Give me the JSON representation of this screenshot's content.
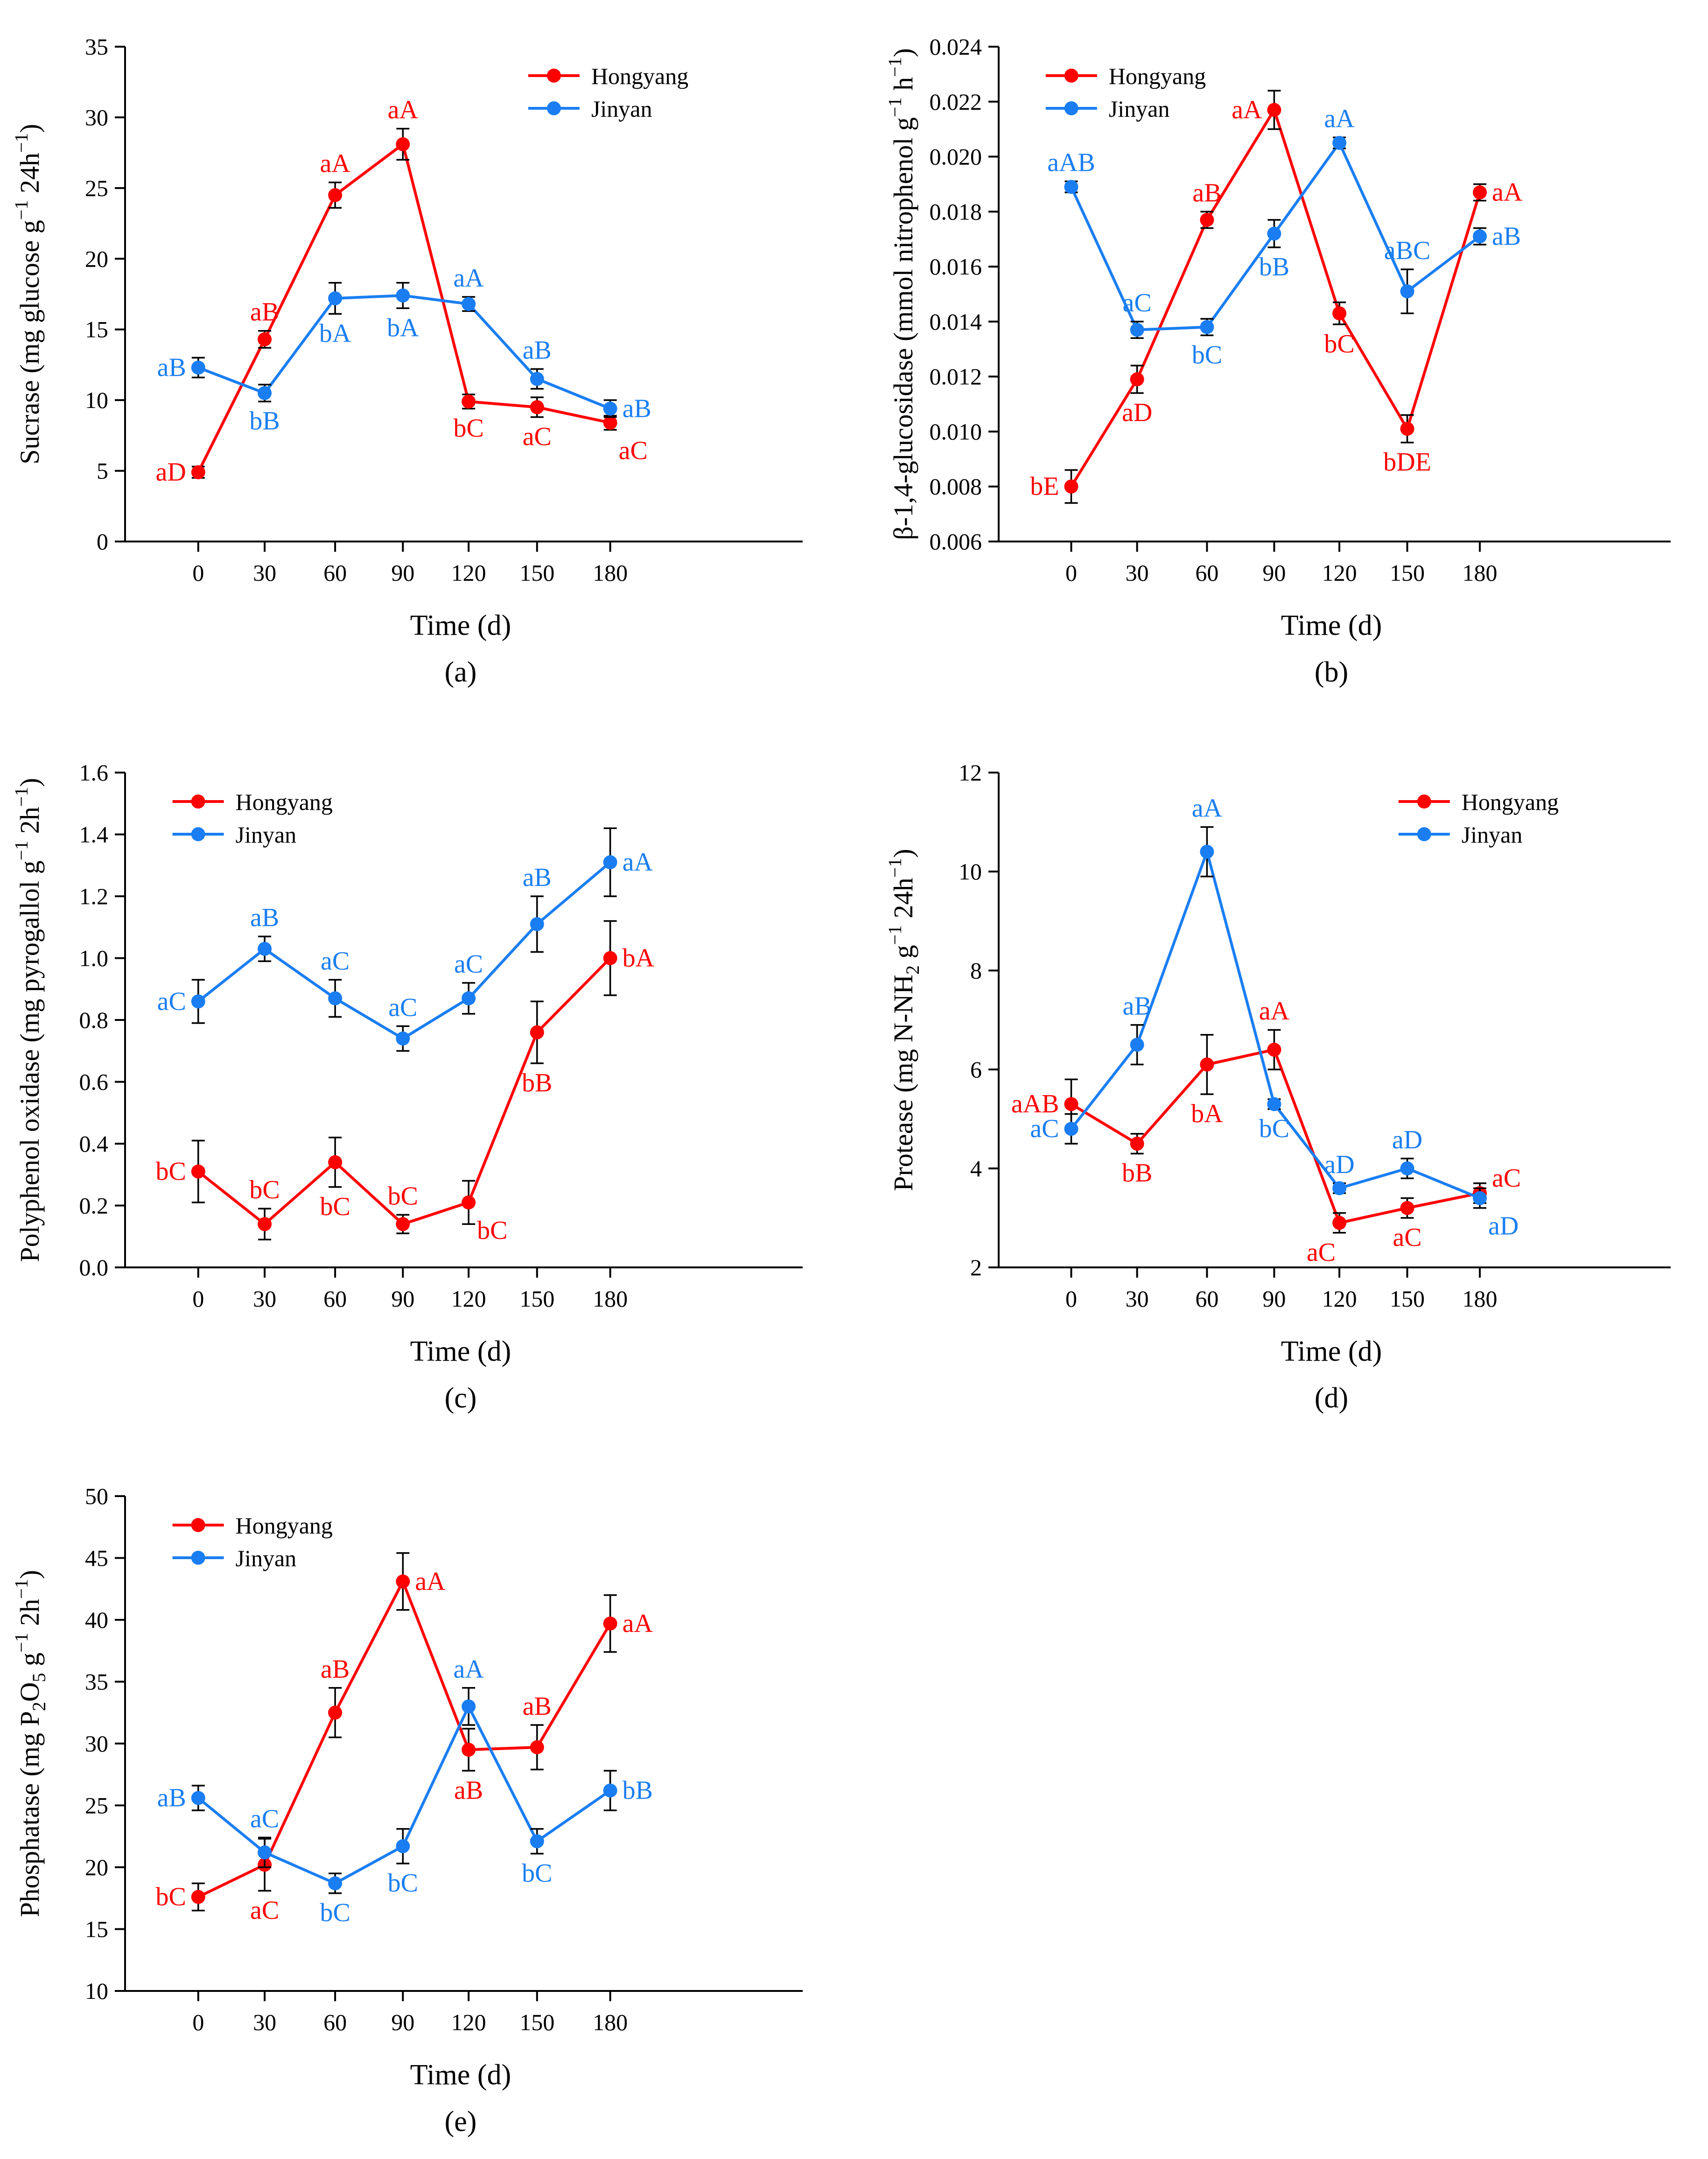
{
  "colors": {
    "hongyang": "#ff0000",
    "jinyan": "#1a7ef2",
    "axis": "#000000",
    "error_bar": "#000000"
  },
  "chart_data": [
    {
      "type": "line",
      "panel_label": "(a)",
      "xlabel": "Time (d)",
      "ylabel_main": "Sucrase (mg glucose g",
      "ylabel_tail": "24h",
      "ylim": [
        0,
        35
      ],
      "yticks": [
        "0",
        "5",
        "10",
        "15",
        "20",
        "25",
        "30",
        "35"
      ],
      "ytick_values": [
        0,
        5,
        10,
        15,
        20,
        25,
        30,
        35
      ],
      "categories": [
        "0",
        "30",
        "60",
        "90",
        "120",
        "150",
        "180"
      ],
      "legend_position": "top-right",
      "series": [
        {
          "name": "Hongyang",
          "color_key": "hongyang",
          "values": [
            4.9,
            14.3,
            24.5,
            28.1,
            9.9,
            9.5,
            8.4
          ],
          "errors": [
            0.4,
            0.6,
            0.9,
            1.1,
            0.5,
            0.7,
            0.5
          ],
          "labels": [
            "aD",
            "aB",
            "aA",
            "aA",
            "bC",
            "aC",
            "aC"
          ],
          "label_pos": [
            "left",
            "above",
            "above",
            "above",
            "below",
            "below",
            "below-right"
          ]
        },
        {
          "name": "Jinyan",
          "color_key": "jinyan",
          "values": [
            12.3,
            10.5,
            17.2,
            17.4,
            16.8,
            11.5,
            9.4
          ],
          "errors": [
            0.7,
            0.6,
            1.1,
            0.9,
            0.5,
            0.7,
            0.6
          ],
          "labels": [
            "aB",
            "bB",
            "bA",
            "bA",
            "aA",
            "aB",
            "aB"
          ],
          "label_pos": [
            "left",
            "below",
            "below",
            "below",
            "above",
            "above",
            "right"
          ]
        }
      ]
    },
    {
      "type": "line",
      "panel_label": "(b)",
      "xlabel": "Time (d)",
      "ylabel_main": "β-1,4-glucosidase (mmol nitrophenol g",
      "ylabel_tail": "h",
      "ylim": [
        0.006,
        0.024
      ],
      "yticks": [
        "0.006",
        "0.008",
        "0.010",
        "0.012",
        "0.014",
        "0.016",
        "0.018",
        "0.020",
        "0.022",
        "0.024"
      ],
      "ytick_values": [
        0.006,
        0.008,
        0.01,
        0.012,
        0.014,
        0.016,
        0.018,
        0.02,
        0.022,
        0.024
      ],
      "categories": [
        "0",
        "30",
        "60",
        "90",
        "120",
        "150",
        "180"
      ],
      "legend_position": "top-left",
      "series": [
        {
          "name": "Hongyang",
          "color_key": "hongyang",
          "values": [
            0.008,
            0.0119,
            0.0177,
            0.0217,
            0.0143,
            0.0101,
            0.0187
          ],
          "errors": [
            0.0006,
            0.0005,
            0.0003,
            0.0007,
            0.0004,
            0.0005,
            0.0003
          ],
          "labels": [
            "bE",
            "aD",
            "aB",
            "aA",
            "bC",
            "bDE",
            "aA"
          ],
          "label_pos": [
            "left",
            "below",
            "above",
            "left",
            "below",
            "below",
            "right"
          ]
        },
        {
          "name": "Jinyan",
          "color_key": "jinyan",
          "values": [
            0.0189,
            0.0137,
            0.0138,
            0.0172,
            0.0205,
            0.0151,
            0.0171
          ],
          "errors": [
            0.0002,
            0.0003,
            0.0003,
            0.0005,
            0.0002,
            0.0008,
            0.0003
          ],
          "labels": [
            "aAB",
            "aC",
            "bC",
            "bB",
            "aA",
            "aBC",
            "aB"
          ],
          "label_pos": [
            "above",
            "above",
            "below",
            "below",
            "above",
            "above",
            "right"
          ]
        }
      ]
    },
    {
      "type": "line",
      "panel_label": "(c)",
      "xlabel": "Time (d)",
      "ylabel_main": "Polyphenol oxidase (mg pyrogallol g",
      "ylabel_tail": "2h",
      "ylim": [
        0.0,
        1.6
      ],
      "yticks": [
        "0.0",
        "0.2",
        "0.4",
        "0.6",
        "0.8",
        "1.0",
        "1.2",
        "1.4",
        "1.6"
      ],
      "ytick_values": [
        0.0,
        0.2,
        0.4,
        0.6,
        0.8,
        1.0,
        1.2,
        1.4,
        1.6
      ],
      "categories": [
        "0",
        "30",
        "60",
        "90",
        "120",
        "150",
        "180"
      ],
      "legend_position": "top-left",
      "series": [
        {
          "name": "Hongyang",
          "color_key": "hongyang",
          "values": [
            0.31,
            0.14,
            0.34,
            0.14,
            0.21,
            0.76,
            1.0
          ],
          "errors": [
            0.1,
            0.05,
            0.08,
            0.03,
            0.07,
            0.1,
            0.12
          ],
          "labels": [
            "bC",
            "bC",
            "bC",
            "bC",
            "bC",
            "bB",
            "bA"
          ],
          "label_pos": [
            "left",
            "above",
            "below",
            "above",
            "below-right",
            "below",
            "right"
          ]
        },
        {
          "name": "Jinyan",
          "color_key": "jinyan",
          "values": [
            0.86,
            1.03,
            0.87,
            0.74,
            0.87,
            1.11,
            1.31
          ],
          "errors": [
            0.07,
            0.04,
            0.06,
            0.04,
            0.05,
            0.09,
            0.11
          ],
          "labels": [
            "aC",
            "aB",
            "aC",
            "aC",
            "aC",
            "aB",
            "aA"
          ],
          "label_pos": [
            "left",
            "above",
            "above",
            "above",
            "above",
            "above",
            "right"
          ]
        }
      ]
    },
    {
      "type": "line",
      "panel_label": "(d)",
      "xlabel": "Time (d)",
      "ylabel_main": "Protease (mg N-NH",
      "ylabel_sub": "2",
      "ylabel_mid": " g",
      "ylabel_tail": "24h",
      "ylim": [
        2,
        12
      ],
      "yticks": [
        "2",
        "4",
        "6",
        "8",
        "10",
        "12"
      ],
      "ytick_values": [
        2,
        4,
        6,
        8,
        10,
        12
      ],
      "categories": [
        "0",
        "30",
        "60",
        "90",
        "120",
        "150",
        "180"
      ],
      "legend_position": "top-right",
      "series": [
        {
          "name": "Hongyang",
          "color_key": "hongyang",
          "values": [
            5.3,
            4.5,
            6.1,
            6.4,
            2.9,
            3.2,
            3.5
          ],
          "errors": [
            0.5,
            0.2,
            0.6,
            0.4,
            0.2,
            0.2,
            0.2
          ],
          "labels": [
            "aAB",
            "bB",
            "bA",
            "aA",
            "aC",
            "aC",
            "aC"
          ],
          "label_pos": [
            "left",
            "below",
            "below",
            "above",
            "below-left",
            "below",
            "above-right"
          ]
        },
        {
          "name": "Jinyan",
          "color_key": "jinyan",
          "values": [
            4.8,
            6.5,
            10.4,
            5.3,
            3.6,
            4.0,
            3.4
          ],
          "errors": [
            0.3,
            0.4,
            0.5,
            0.1,
            0.1,
            0.2,
            0.2
          ],
          "labels": [
            "aC",
            "aB",
            "aA",
            "bC",
            "aD",
            "aD",
            "aD"
          ],
          "label_pos": [
            "left",
            "above",
            "above",
            "below",
            "above",
            "above",
            "below-right"
          ]
        }
      ]
    },
    {
      "type": "line",
      "panel_label": "(e)",
      "xlabel": "Time (d)",
      "ylabel_main": "Phosphatase (mg P",
      "ylabel_sub": "2",
      "ylabel_mid": "O",
      "ylabel_sub2": "5",
      "ylabel_mid2": " g",
      "ylabel_tail": "2h",
      "ylim": [
        10,
        50
      ],
      "yticks": [
        "10",
        "15",
        "20",
        "25",
        "30",
        "35",
        "40",
        "45",
        "50"
      ],
      "ytick_values": [
        10,
        15,
        20,
        25,
        30,
        35,
        40,
        45,
        50
      ],
      "categories": [
        "0",
        "30",
        "60",
        "90",
        "120",
        "150",
        "180"
      ],
      "legend_position": "top-left",
      "series": [
        {
          "name": "Hongyang",
          "color_key": "hongyang",
          "values": [
            17.6,
            20.2,
            32.5,
            43.1,
            29.5,
            29.7,
            39.7
          ],
          "errors": [
            1.1,
            2.1,
            2.0,
            2.3,
            1.7,
            1.8,
            2.3
          ],
          "labels": [
            "bC",
            "aC",
            "aB",
            "aA",
            "aB",
            "aB",
            "aA"
          ],
          "label_pos": [
            "left",
            "below",
            "above",
            "right",
            "below",
            "above",
            "right"
          ]
        },
        {
          "name": "Jinyan",
          "color_key": "jinyan",
          "values": [
            25.6,
            21.2,
            18.7,
            21.7,
            33.0,
            22.1,
            26.2
          ],
          "errors": [
            1.0,
            1.2,
            0.8,
            1.4,
            1.5,
            1.0,
            1.6
          ],
          "labels": [
            "aB",
            "aC",
            "bC",
            "bC",
            "aA",
            "bC",
            "bB"
          ],
          "label_pos": [
            "left",
            "above",
            "below",
            "below",
            "above",
            "below",
            "right"
          ]
        }
      ]
    }
  ]
}
